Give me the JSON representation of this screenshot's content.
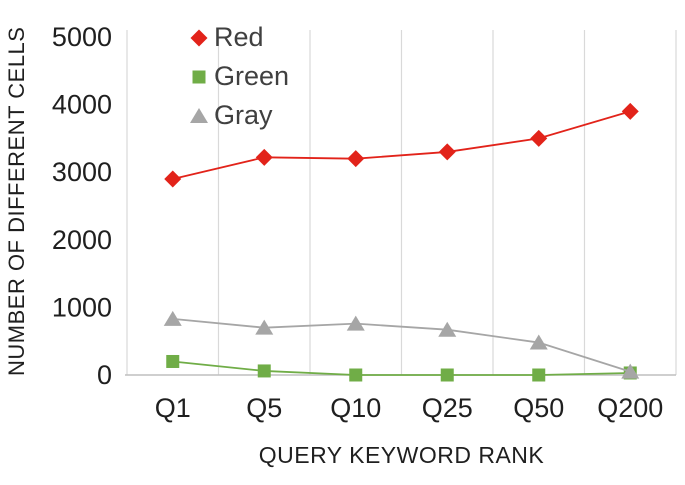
{
  "chart_data": {
    "type": "line",
    "categories": [
      "Q1",
      "Q5",
      "Q10",
      "Q25",
      "Q50",
      "Q200"
    ],
    "series": [
      {
        "name": "Red",
        "color": "#e2231a",
        "marker": "diamond",
        "values": [
          2900,
          3220,
          3200,
          3300,
          3500,
          3900
        ]
      },
      {
        "name": "Green",
        "color": "#70ad47",
        "marker": "square",
        "values": [
          200,
          60,
          0,
          0,
          0,
          30
        ]
      },
      {
        "name": "Gray",
        "color": "#a6a6a6",
        "marker": "triangle",
        "values": [
          830,
          700,
          760,
          670,
          480,
          50
        ]
      }
    ],
    "title": "",
    "xlabel": "QUERY KEYWORD RANK",
    "ylabel": "NUMBER OF DIFFERENT CELLS",
    "ylim": [
      0,
      5000
    ],
    "yticks": [
      0,
      1000,
      2000,
      3000,
      4000,
      5000
    ],
    "grid": "vertical",
    "gridline_color": "#d9d9d9",
    "axis_line_color": "#bfbfbf",
    "legend_position": "top-left-inside"
  }
}
